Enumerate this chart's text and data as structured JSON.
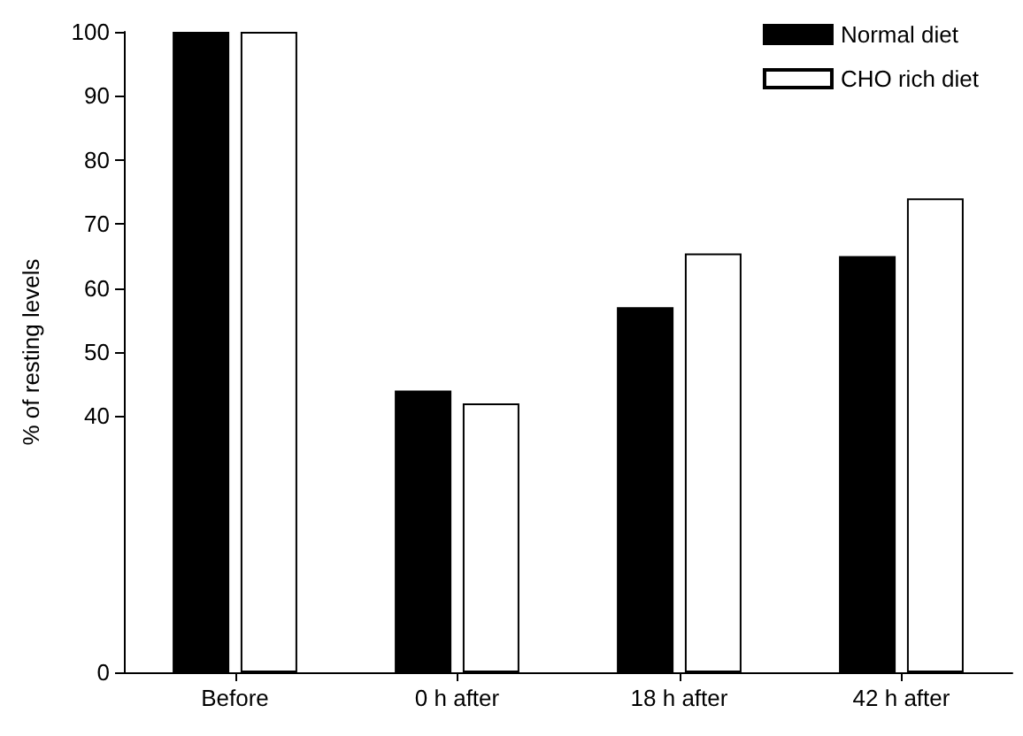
{
  "chart_data": {
    "type": "bar",
    "ylabel": "% of resting levels",
    "categories": [
      "Before",
      "0 h after",
      "18 h after",
      "42 h after"
    ],
    "series": [
      {
        "name": "Normal diet",
        "color": "#000000",
        "values": [
          100,
          44,
          57,
          65
        ]
      },
      {
        "name": "CHO rich diet",
        "color": "#ffffff",
        "values": [
          100,
          42,
          65.4,
          74
        ]
      }
    ],
    "ylim": [
      0,
      100
    ],
    "yticks": [
      0,
      40,
      50,
      60,
      70,
      80,
      90,
      100
    ],
    "grid": false,
    "legend": "top right"
  }
}
